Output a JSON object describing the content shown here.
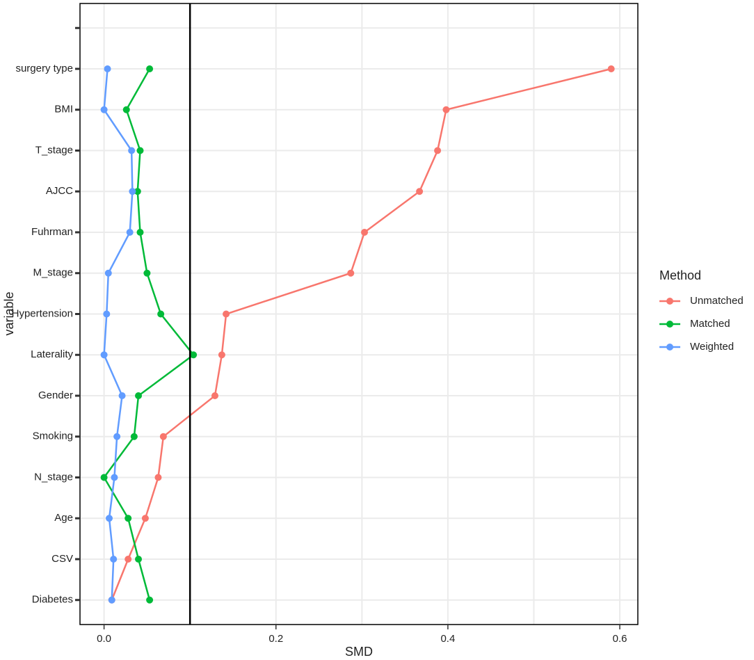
{
  "chart_data": {
    "type": "line",
    "x_label": "SMD",
    "y_label": "variable",
    "legend_title": "Method",
    "legend_position": "right",
    "grid": true,
    "categories": [
      "Diabetes",
      "CSV",
      "Age",
      "N_stage",
      "Smoking",
      "Gender",
      "Laterality",
      "Hypertension",
      "M_stage",
      "Fuhrman",
      "AJCC",
      "T_stage",
      "BMI",
      "surgery type",
      null
    ],
    "series": [
      {
        "name": "Unmatched",
        "color": "#f8766d",
        "values": [
          0.009,
          0.028,
          0.048,
          0.063,
          0.069,
          0.129,
          0.137,
          0.142,
          0.287,
          0.303,
          0.367,
          0.388,
          0.398,
          0.59,
          null
        ]
      },
      {
        "name": "Matched",
        "color": "#00ba38",
        "values": [
          0.053,
          0.04,
          0.028,
          0.0,
          0.035,
          0.04,
          0.104,
          0.066,
          0.05,
          0.042,
          0.039,
          0.042,
          0.026,
          0.053,
          null
        ]
      },
      {
        "name": "Weighted",
        "color": "#619cff",
        "values": [
          0.009,
          0.011,
          0.006,
          0.012,
          0.015,
          0.021,
          0.0,
          0.003,
          0.005,
          0.03,
          0.033,
          0.032,
          0.0,
          0.004,
          null
        ]
      }
    ],
    "xlim": [
      -0.028,
      0.621
    ],
    "xticks": [
      {
        "value": 0,
        "label": "0.0"
      },
      0.2,
      0.4,
      0.6
    ],
    "minor_xticks": [
      0.1,
      0.3,
      0.5
    ],
    "reference_line": 0.1
  }
}
